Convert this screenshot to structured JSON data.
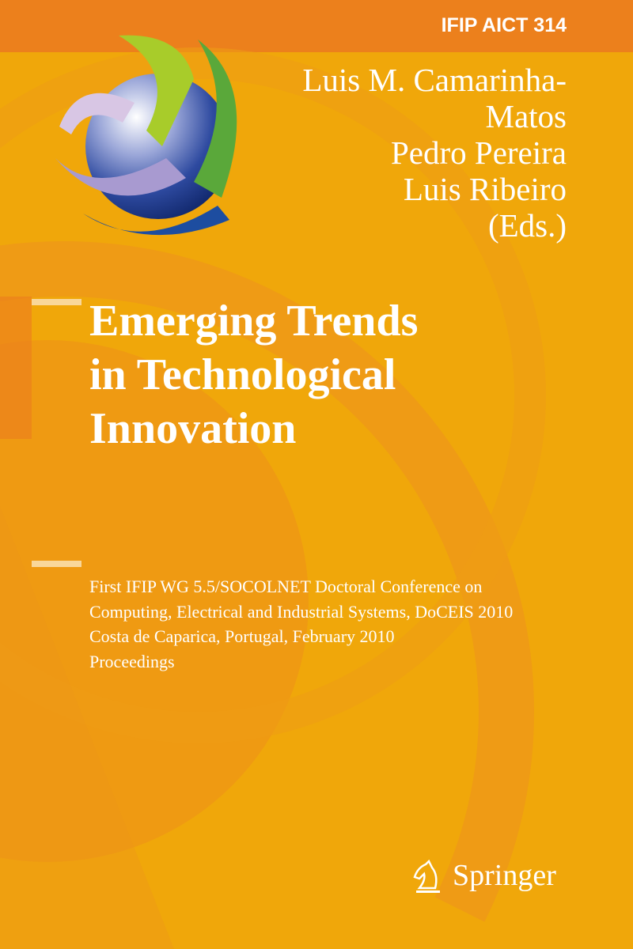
{
  "cover": {
    "series": "IFIP AICT 314",
    "authors": [
      "Luis M. Camarinha-",
      "Matos",
      "Pedro Pereira",
      "Luis Ribeiro",
      "(Eds.)"
    ],
    "title": [
      "Emerging Trends",
      "in Technological",
      "Innovation"
    ],
    "subtitle": [
      "First IFIP WG 5.5/SOCOLNET Doctoral Conference on",
      "Computing, Electrical and Industrial Systems, DoCEIS 2010",
      "Costa de Caparica, Portugal, February 2010",
      "Proceedings"
    ],
    "publisher": "Springer",
    "colors": {
      "background": "#f0a70a",
      "top_band": "#ec7d1c",
      "text": "#ffffff"
    },
    "icons": {
      "logo": "globe-logo",
      "publisher_logo": "knight-horse-icon"
    }
  }
}
